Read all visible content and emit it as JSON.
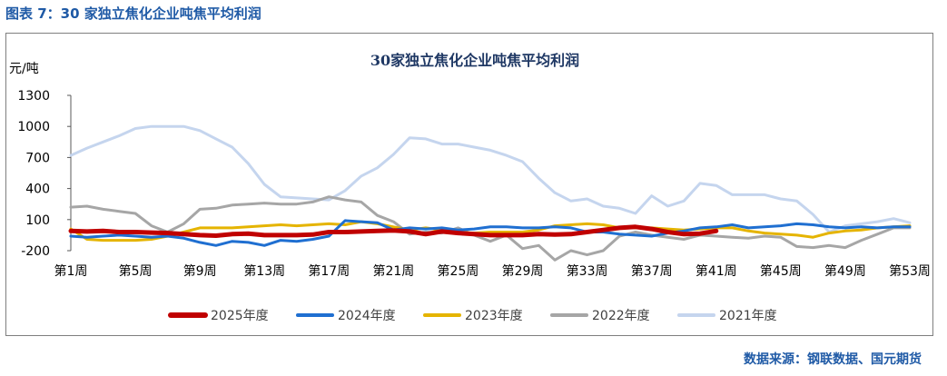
{
  "header": {
    "title": "图表 7：30 家独立焦化企业吨焦平均利润"
  },
  "source": "数据来源：钢联数据、国元期货",
  "colors": {
    "header": "#1f5aa6",
    "frame": "#7f7f7f"
  },
  "chart_data": {
    "type": "line",
    "title": "30家独立焦化企业吨焦平均利润",
    "ylabel": "元/吨",
    "xlabel": "",
    "ylim": [
      -200,
      1300
    ],
    "yticks": [
      -200,
      100,
      400,
      700,
      1000,
      1300
    ],
    "categories": [
      "第1周",
      "第2周",
      "第3周",
      "第4周",
      "第5周",
      "第6周",
      "第7周",
      "第8周",
      "第9周",
      "第10周",
      "第11周",
      "第12周",
      "第13周",
      "第14周",
      "第15周",
      "第16周",
      "第17周",
      "第18周",
      "第19周",
      "第20周",
      "第21周",
      "第22周",
      "第23周",
      "第24周",
      "第25周",
      "第26周",
      "第27周",
      "第28周",
      "第29周",
      "第30周",
      "第31周",
      "第32周",
      "第33周",
      "第34周",
      "第35周",
      "第36周",
      "第37周",
      "第38周",
      "第39周",
      "第40周",
      "第41周",
      "第42周",
      "第43周",
      "第44周",
      "第45周",
      "第46周",
      "第47周",
      "第48周",
      "第49周",
      "第50周",
      "第51周",
      "第52周",
      "第53周"
    ],
    "tick_labels": [
      "第1周",
      "第5周",
      "第9周",
      "第13周",
      "第17周",
      "第21周",
      "第25周",
      "第29周",
      "第33周",
      "第37周",
      "第41周",
      "第45周",
      "第49周",
      "第53周"
    ],
    "grid": false,
    "legend": "bottom",
    "series": [
      {
        "name": "2025年度",
        "color": "#c00000",
        "width": 5,
        "values": [
          -10,
          -15,
          -10,
          -20,
          -20,
          -25,
          -30,
          -40,
          -50,
          -55,
          -40,
          -35,
          -50,
          -50,
          -50,
          -45,
          -20,
          -20,
          -15,
          -10,
          -5,
          -15,
          -40,
          -15,
          -30,
          -40,
          -50,
          -50,
          -50,
          -40,
          -45,
          -40,
          -20,
          0,
          20,
          30,
          10,
          -20,
          -40,
          -35,
          -10,
          null,
          null,
          null,
          null,
          null,
          null,
          null,
          null,
          null,
          null,
          null,
          null
        ]
      },
      {
        "name": "2024年度",
        "color": "#1f6fd1",
        "width": 3,
        "values": [
          -60,
          -70,
          -60,
          -50,
          -60,
          -70,
          -60,
          -80,
          -120,
          -150,
          -110,
          -120,
          -150,
          -100,
          -110,
          -90,
          -60,
          90,
          80,
          70,
          0,
          20,
          10,
          20,
          0,
          10,
          30,
          30,
          20,
          20,
          30,
          20,
          -20,
          -20,
          -40,
          -50,
          -60,
          -30,
          -10,
          20,
          30,
          50,
          20,
          30,
          40,
          60,
          50,
          30,
          20,
          30,
          20,
          30,
          30
        ]
      },
      {
        "name": "2023年度",
        "color": "#e5b400",
        "width": 3,
        "values": [
          10,
          -90,
          -100,
          -100,
          -100,
          -90,
          -60,
          -20,
          20,
          20,
          20,
          30,
          40,
          50,
          40,
          50,
          60,
          50,
          80,
          60,
          30,
          0,
          20,
          0,
          -20,
          -30,
          -20,
          -20,
          -20,
          0,
          40,
          50,
          60,
          50,
          20,
          20,
          20,
          10,
          0,
          10,
          20,
          20,
          -10,
          -30,
          -40,
          -50,
          -70,
          -30,
          -10,
          0,
          20,
          30,
          40
        ]
      },
      {
        "name": "2022年度",
        "color": "#a6a6a6",
        "width": 3,
        "values": [
          220,
          230,
          200,
          180,
          160,
          40,
          -20,
          60,
          200,
          210,
          240,
          250,
          260,
          250,
          250,
          270,
          320,
          290,
          270,
          140,
          80,
          -40,
          -20,
          -30,
          20,
          -50,
          -110,
          -50,
          -180,
          -150,
          -290,
          -200,
          -240,
          -200,
          -60,
          -20,
          -50,
          -70,
          -90,
          -50,
          -60,
          -70,
          -80,
          -60,
          -70,
          -160,
          -170,
          -150,
          -170,
          -100,
          -40,
          20,
          20
        ]
      },
      {
        "name": "2021年度",
        "color": "#c5d5ee",
        "width": 3,
        "values": [
          720,
          790,
          850,
          910,
          980,
          1000,
          1000,
          1000,
          960,
          880,
          800,
          640,
          440,
          320,
          310,
          300,
          290,
          380,
          520,
          600,
          730,
          890,
          880,
          830,
          830,
          800,
          770,
          720,
          660,
          500,
          360,
          280,
          300,
          230,
          210,
          160,
          330,
          230,
          280,
          450,
          430,
          340,
          340,
          340,
          300,
          280,
          150,
          -20,
          40,
          60,
          80,
          110,
          70
        ]
      }
    ]
  }
}
